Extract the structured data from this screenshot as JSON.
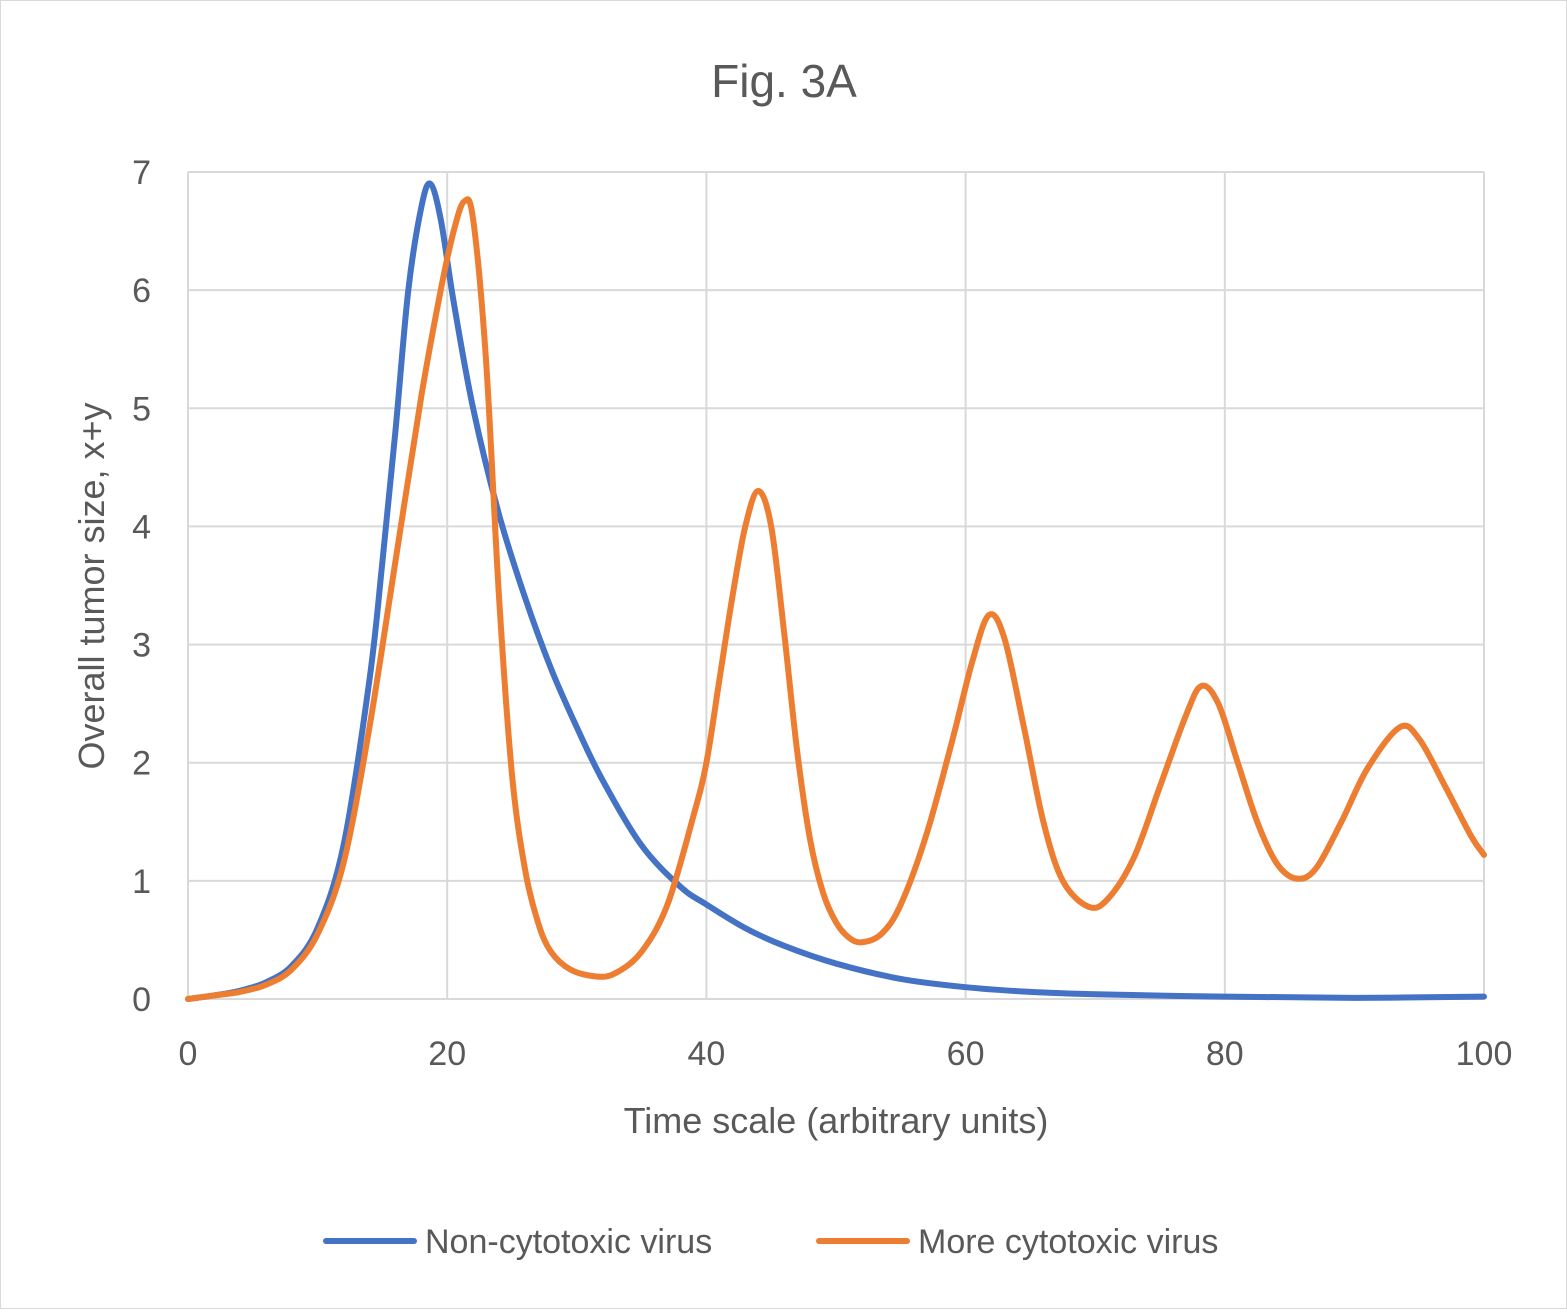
{
  "chart_data": {
    "type": "line",
    "title": "Fig. 3A",
    "xlabel": "Time scale (arbitrary units)",
    "ylabel": "Overall tumor size, x+y",
    "xlim": [
      0,
      100
    ],
    "ylim": [
      0,
      7
    ],
    "x_ticks": [
      "0",
      "20",
      "40",
      "60",
      "80",
      "100"
    ],
    "y_ticks": [
      "0",
      "1",
      "2",
      "3",
      "4",
      "5",
      "6",
      "7"
    ],
    "grid": true,
    "legend_position": "bottom",
    "series": [
      {
        "name": "Non-cytotoxic virus",
        "color": "#4472C4",
        "points": [
          [
            0,
            0.0
          ],
          [
            2,
            0.03
          ],
          [
            4,
            0.07
          ],
          [
            6,
            0.14
          ],
          [
            8,
            0.28
          ],
          [
            10,
            0.6
          ],
          [
            12,
            1.3
          ],
          [
            14,
            2.7
          ],
          [
            15,
            3.7
          ],
          [
            16,
            4.8
          ],
          [
            17,
            6.0
          ],
          [
            18,
            6.7
          ],
          [
            18.7,
            6.9
          ],
          [
            19.5,
            6.6
          ],
          [
            20.5,
            5.9
          ],
          [
            22,
            5.0
          ],
          [
            24,
            4.1
          ],
          [
            26,
            3.4
          ],
          [
            28,
            2.8
          ],
          [
            30,
            2.3
          ],
          [
            32,
            1.85
          ],
          [
            35,
            1.3
          ],
          [
            38,
            0.95
          ],
          [
            40,
            0.8
          ],
          [
            43,
            0.6
          ],
          [
            46,
            0.45
          ],
          [
            50,
            0.3
          ],
          [
            55,
            0.17
          ],
          [
            60,
            0.1
          ],
          [
            65,
            0.06
          ],
          [
            70,
            0.04
          ],
          [
            80,
            0.02
          ],
          [
            90,
            0.01
          ],
          [
            100,
            0.02
          ]
        ]
      },
      {
        "name": "More cytotoxic virus",
        "color": "#ED7D31",
        "points": [
          [
            0,
            0.0
          ],
          [
            2,
            0.03
          ],
          [
            4,
            0.06
          ],
          [
            6,
            0.12
          ],
          [
            8,
            0.25
          ],
          [
            10,
            0.55
          ],
          [
            12,
            1.15
          ],
          [
            14,
            2.3
          ],
          [
            16,
            3.7
          ],
          [
            18,
            5.1
          ],
          [
            19.5,
            6.0
          ],
          [
            20.5,
            6.5
          ],
          [
            21.3,
            6.75
          ],
          [
            22,
            6.6
          ],
          [
            23,
            5.4
          ],
          [
            24,
            3.4
          ],
          [
            25,
            1.9
          ],
          [
            26,
            1.1
          ],
          [
            27,
            0.65
          ],
          [
            28,
            0.4
          ],
          [
            29.5,
            0.25
          ],
          [
            31.5,
            0.19
          ],
          [
            33,
            0.22
          ],
          [
            35,
            0.4
          ],
          [
            37,
            0.8
          ],
          [
            39,
            1.55
          ],
          [
            40,
            2.0
          ],
          [
            41,
            2.7
          ],
          [
            42,
            3.4
          ],
          [
            43,
            4.0
          ],
          [
            44,
            4.3
          ],
          [
            45,
            4.0
          ],
          [
            46,
            3.1
          ],
          [
            47,
            2.1
          ],
          [
            48,
            1.35
          ],
          [
            49,
            0.9
          ],
          [
            50,
            0.65
          ],
          [
            51,
            0.52
          ],
          [
            52,
            0.48
          ],
          [
            53.5,
            0.55
          ],
          [
            55,
            0.8
          ],
          [
            57,
            1.4
          ],
          [
            59,
            2.2
          ],
          [
            60.5,
            2.85
          ],
          [
            61.8,
            3.25
          ],
          [
            63,
            3.05
          ],
          [
            64.5,
            2.3
          ],
          [
            66,
            1.5
          ],
          [
            67.5,
            1.0
          ],
          [
            69.5,
            0.78
          ],
          [
            71,
            0.85
          ],
          [
            73,
            1.2
          ],
          [
            75,
            1.8
          ],
          [
            77,
            2.4
          ],
          [
            78.2,
            2.65
          ],
          [
            79.5,
            2.5
          ],
          [
            81,
            2.0
          ],
          [
            82.5,
            1.5
          ],
          [
            84,
            1.15
          ],
          [
            85.5,
            1.02
          ],
          [
            87,
            1.1
          ],
          [
            89,
            1.5
          ],
          [
            91,
            1.95
          ],
          [
            93.5,
            2.3
          ],
          [
            95,
            2.2
          ],
          [
            97,
            1.8
          ],
          [
            99,
            1.38
          ],
          [
            100,
            1.22
          ]
        ]
      }
    ]
  }
}
